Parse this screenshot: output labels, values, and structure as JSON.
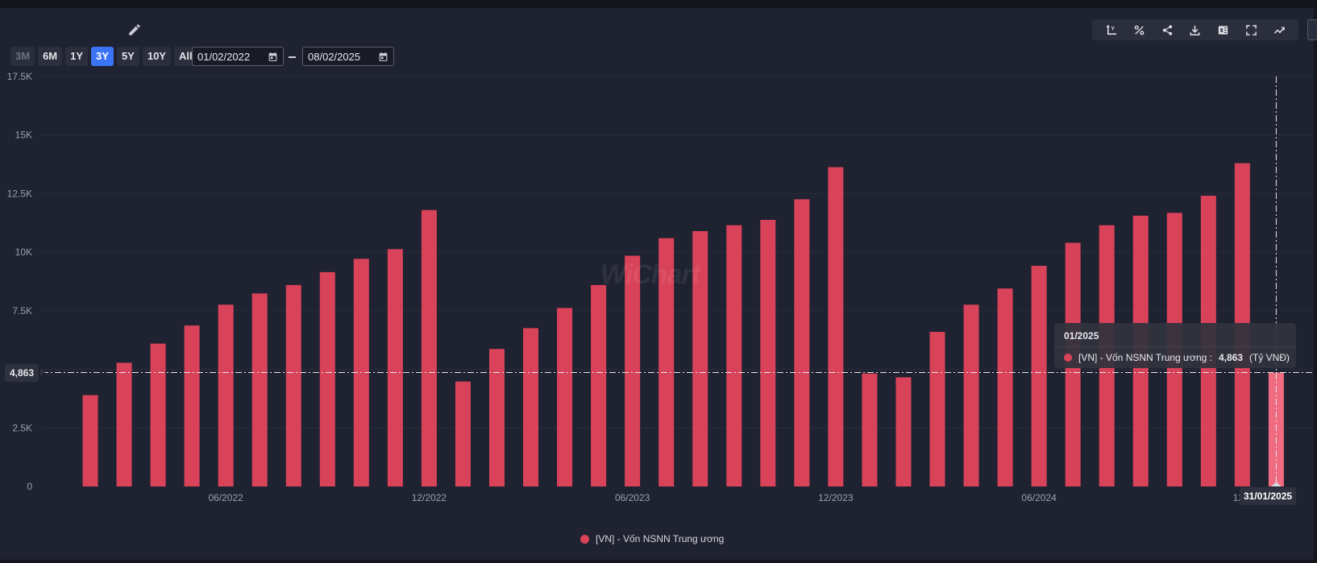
{
  "toolbar": {
    "ranges": [
      "3M",
      "6M",
      "1Y",
      "3Y",
      "5Y",
      "10Y",
      "All"
    ],
    "active_range": "3Y",
    "date_from": "01/02/2022",
    "date_to": "08/02/2025",
    "icons": [
      "axis-y-icon",
      "percent-icon",
      "share-icon",
      "download-icon",
      "excel-icon",
      "fullscreen-icon",
      "trend-icon"
    ]
  },
  "colors": {
    "bar": "#d9435a",
    "bar_highlight": "#f06a80",
    "accent": "#3a74f5",
    "grid": "#2a2e3b",
    "axis_text": "#9aa0ac"
  },
  "watermark": "WiChart",
  "tooltip": {
    "date": "01/2025",
    "series_label": "[VN] - Vốn NSNN Trung ương :",
    "value": "4,863",
    "unit": "(Tỷ VNĐ)"
  },
  "crosshair": {
    "y_label": "4,863",
    "x_label": "31/01/2025"
  },
  "chart_data": {
    "type": "bar",
    "title": "",
    "xlabel": "",
    "ylabel": "",
    "ylim": [
      0,
      17500
    ],
    "y_ticks": [
      0,
      2500,
      5000,
      7500,
      10000,
      12500,
      15000,
      17500
    ],
    "y_tick_labels": [
      "0",
      "2.5K",
      "5K",
      "7.5K",
      "10K",
      "12.5K",
      "15K",
      "17.5K"
    ],
    "x_tick_labels": [
      {
        "category": "06/2022",
        "label": "06/2022"
      },
      {
        "category": "12/2022",
        "label": "12/2022"
      },
      {
        "category": "06/2023",
        "label": "06/2023"
      },
      {
        "category": "12/2023",
        "label": "12/2023"
      },
      {
        "category": "06/2024",
        "label": "06/2024"
      },
      {
        "category": "12/2024",
        "label": "12/2"
      }
    ],
    "grid": true,
    "legend": "bottom-center",
    "categories": [
      "02/2022",
      "03/2022",
      "04/2022",
      "05/2022",
      "06/2022",
      "07/2022",
      "08/2022",
      "09/2022",
      "10/2022",
      "11/2022",
      "12/2022",
      "01/2023",
      "02/2023",
      "03/2023",
      "04/2023",
      "05/2023",
      "06/2023",
      "07/2023",
      "08/2023",
      "09/2023",
      "10/2023",
      "11/2023",
      "12/2023",
      "01/2024",
      "02/2024",
      "03/2024",
      "04/2024",
      "05/2024",
      "06/2024",
      "07/2024",
      "08/2024",
      "09/2024",
      "10/2024",
      "11/2024",
      "12/2024",
      "01/2025"
    ],
    "series": [
      {
        "name": "[VN] - Vốn NSNN Trung ương",
        "values": [
          3900,
          5280,
          6100,
          6870,
          7760,
          8240,
          8600,
          9150,
          9720,
          10130,
          11800,
          4480,
          5870,
          6760,
          7620,
          8600,
          9850,
          10600,
          10900,
          11150,
          11380,
          12260,
          13630,
          4820,
          4660,
          6600,
          7760,
          8450,
          9420,
          10400,
          11150,
          11560,
          11680,
          12410,
          13800,
          4863
        ]
      }
    ],
    "highlight_index": 35
  }
}
